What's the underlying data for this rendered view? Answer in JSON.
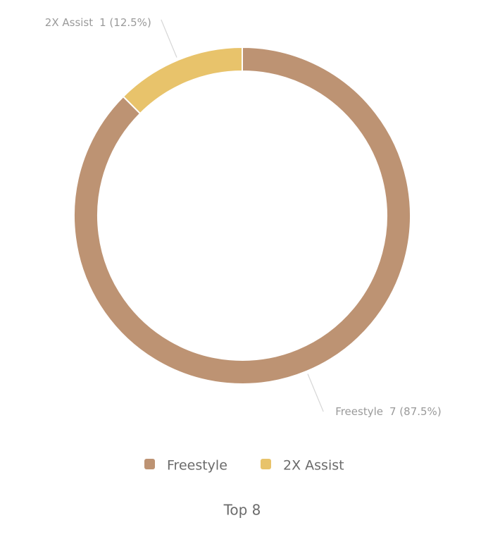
{
  "chart_data": {
    "type": "donut",
    "title": "Top 8",
    "categories": [
      "Freestyle",
      "2X Assist"
    ],
    "values": [
      7,
      1
    ],
    "value_labels": [
      "7 (87.5%)",
      "1 (12.5%)"
    ],
    "colors": [
      "#bd9373",
      "#e8c36b"
    ],
    "legend": "bottom"
  }
}
